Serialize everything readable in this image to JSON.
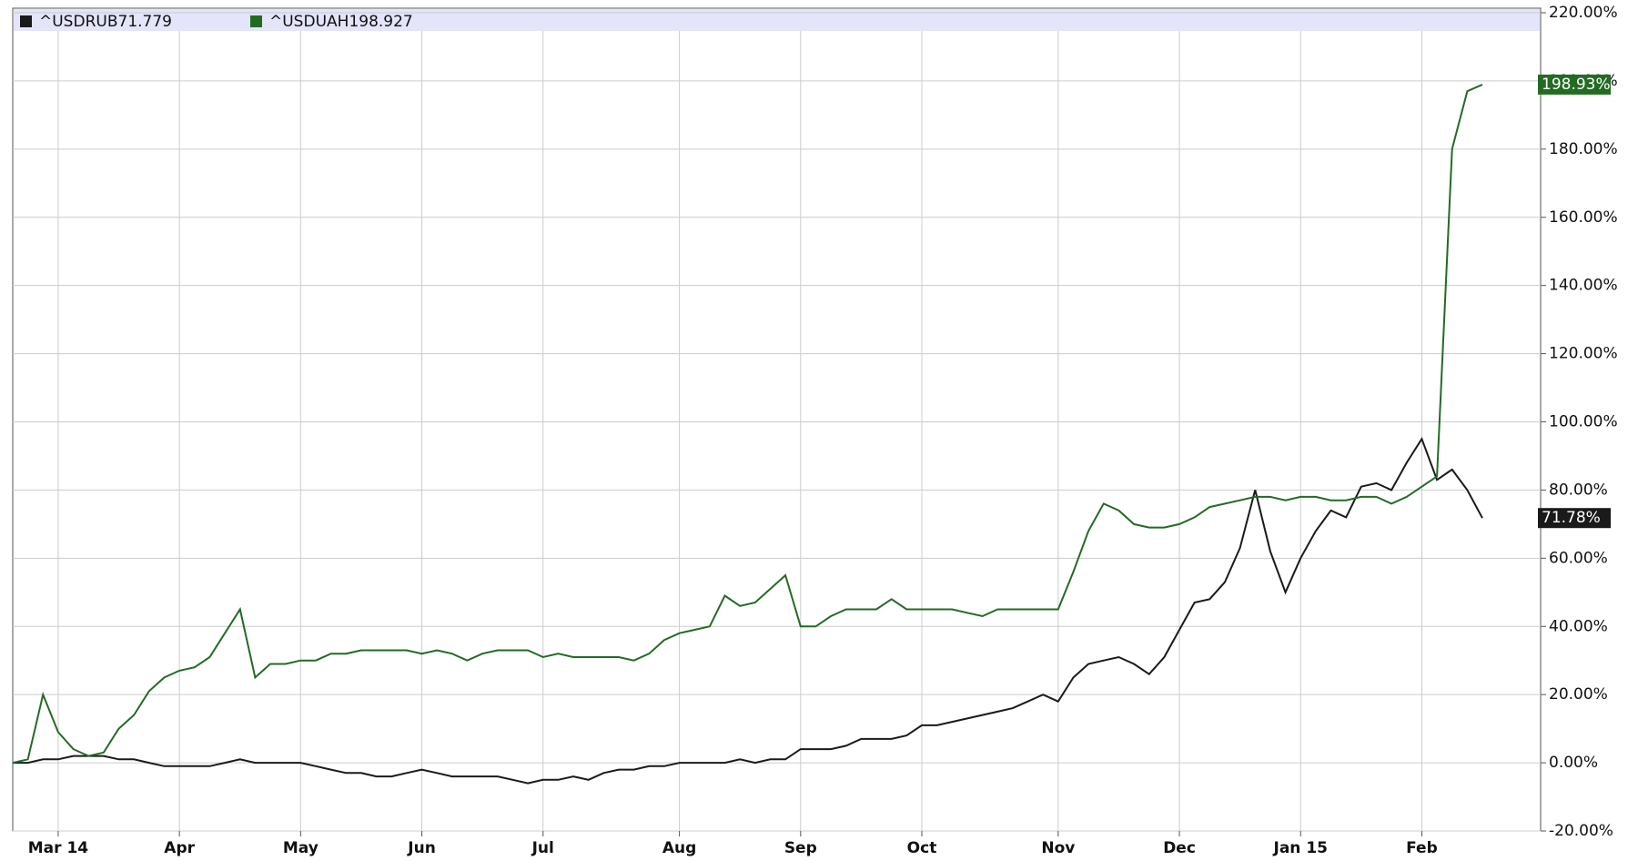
{
  "chart_data": {
    "type": "line",
    "categories": [
      null,
      null,
      null,
      "Mar 14",
      null,
      null,
      null,
      null,
      null,
      null,
      null,
      "Apr",
      null,
      null,
      null,
      null,
      null,
      null,
      null,
      "May",
      null,
      null,
      null,
      null,
      null,
      null,
      null,
      "Jun",
      null,
      null,
      null,
      null,
      null,
      null,
      null,
      "Jul",
      null,
      null,
      null,
      null,
      null,
      null,
      null,
      null,
      "Aug",
      null,
      null,
      null,
      null,
      null,
      null,
      null,
      "Sep",
      null,
      null,
      null,
      null,
      null,
      null,
      null,
      "Oct",
      null,
      null,
      null,
      null,
      null,
      null,
      null,
      null,
      "Nov",
      null,
      null,
      null,
      null,
      null,
      null,
      null,
      "Dec",
      null,
      null,
      null,
      null,
      null,
      null,
      null,
      "Jan 15",
      null,
      null,
      null,
      null,
      null,
      null,
      null,
      "Feb",
      null,
      null,
      null,
      null
    ],
    "series": [
      {
        "name": "^USDRUB",
        "color": "#1a1a1a",
        "last_label": "71.78%",
        "values": [
          0,
          0,
          1,
          1,
          2,
          2,
          2,
          1,
          1,
          0,
          -1,
          -1,
          -1,
          -1,
          0,
          1,
          0,
          0,
          0,
          0,
          -1,
          -2,
          -3,
          -3,
          -4,
          -4,
          -3,
          -2,
          -3,
          -4,
          -4,
          -4,
          -4,
          -5,
          -6,
          -5,
          -5,
          -4,
          -5,
          -3,
          -2,
          -2,
          -1,
          -1,
          0,
          0,
          0,
          0,
          1,
          0,
          1,
          1,
          4,
          4,
          4,
          5,
          7,
          7,
          7,
          8,
          11,
          11,
          12,
          13,
          14,
          15,
          16,
          18,
          20,
          18,
          25,
          29,
          30,
          31,
          29,
          26,
          31,
          39,
          47,
          48,
          53,
          63,
          80,
          62,
          50,
          60,
          68,
          74,
          72,
          81,
          82,
          80,
          88,
          95,
          83,
          86,
          80,
          71.779
        ]
      },
      {
        "name": "^USDUAH",
        "color": "#236b23",
        "last_label": "198.93%",
        "values": [
          0,
          1,
          20,
          9,
          4,
          2,
          3,
          10,
          14,
          21,
          25,
          27,
          28,
          31,
          38,
          45,
          25,
          29,
          29,
          30,
          30,
          32,
          32,
          33,
          33,
          33,
          33,
          32,
          33,
          32,
          30,
          32,
          33,
          33,
          33,
          31,
          32,
          31,
          31,
          31,
          31,
          30,
          32,
          36,
          38,
          39,
          40,
          49,
          46,
          47,
          51,
          55,
          40,
          40,
          43,
          45,
          45,
          45,
          48,
          45,
          45,
          45,
          45,
          44,
          43,
          45,
          45,
          45,
          45,
          45,
          56,
          68,
          76,
          74,
          70,
          69,
          69,
          70,
          72,
          75,
          76,
          77,
          78,
          78,
          77,
          78,
          78,
          77,
          77,
          78,
          78,
          76,
          78,
          81,
          84,
          180,
          197,
          198.927
        ]
      }
    ],
    "ylim": [
      -20,
      220
    ],
    "yticks": [
      {
        "value": -20,
        "label": "-20.00%"
      },
      {
        "value": 0,
        "label": "0.00%"
      },
      {
        "value": 20,
        "label": "20.00%"
      },
      {
        "value": 40,
        "label": "40.00%"
      },
      {
        "value": 60,
        "label": "60.00%"
      },
      {
        "value": 80,
        "label": "80.00%"
      },
      {
        "value": 100,
        "label": "100.00%"
      },
      {
        "value": 120,
        "label": "120.00%"
      },
      {
        "value": 140,
        "label": "140.00%"
      },
      {
        "value": 160,
        "label": "160.00%"
      },
      {
        "value": 180,
        "label": "180.00%"
      },
      {
        "value": 200,
        "label": "200.00%"
      },
      {
        "value": 220,
        "label": "220.00%"
      }
    ],
    "grid": true,
    "legend": "top-left"
  }
}
